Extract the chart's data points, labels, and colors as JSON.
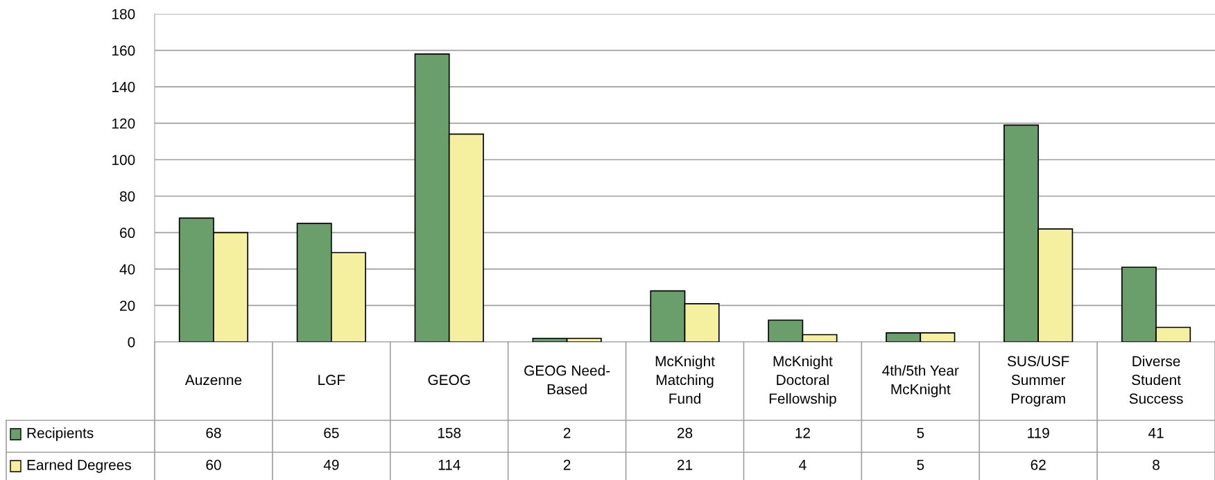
{
  "chart_data": {
    "type": "bar",
    "categories": [
      "Auzenne",
      "LGF",
      "GEOG",
      "GEOG Need-Based",
      "McKnight Matching Fund",
      "McKnight Doctoral Fellowship",
      "4th/5th Year McKnight",
      "SUS/USF Summer Program",
      "Diverse Student Success"
    ],
    "series": [
      {
        "name": "Recipients",
        "color": "#6a9e6b",
        "values": [
          68,
          65,
          158,
          2,
          28,
          12,
          5,
          119,
          41
        ]
      },
      {
        "name": "Earned Degrees",
        "color": "#f4f09f",
        "values": [
          60,
          49,
          114,
          2,
          21,
          4,
          5,
          62,
          8
        ]
      }
    ],
    "ylim": [
      0,
      180
    ],
    "yticks": [
      0,
      20,
      40,
      60,
      80,
      100,
      120,
      140,
      160,
      180
    ],
    "grid": "y",
    "data_labels": true,
    "legend": "bottom left"
  }
}
